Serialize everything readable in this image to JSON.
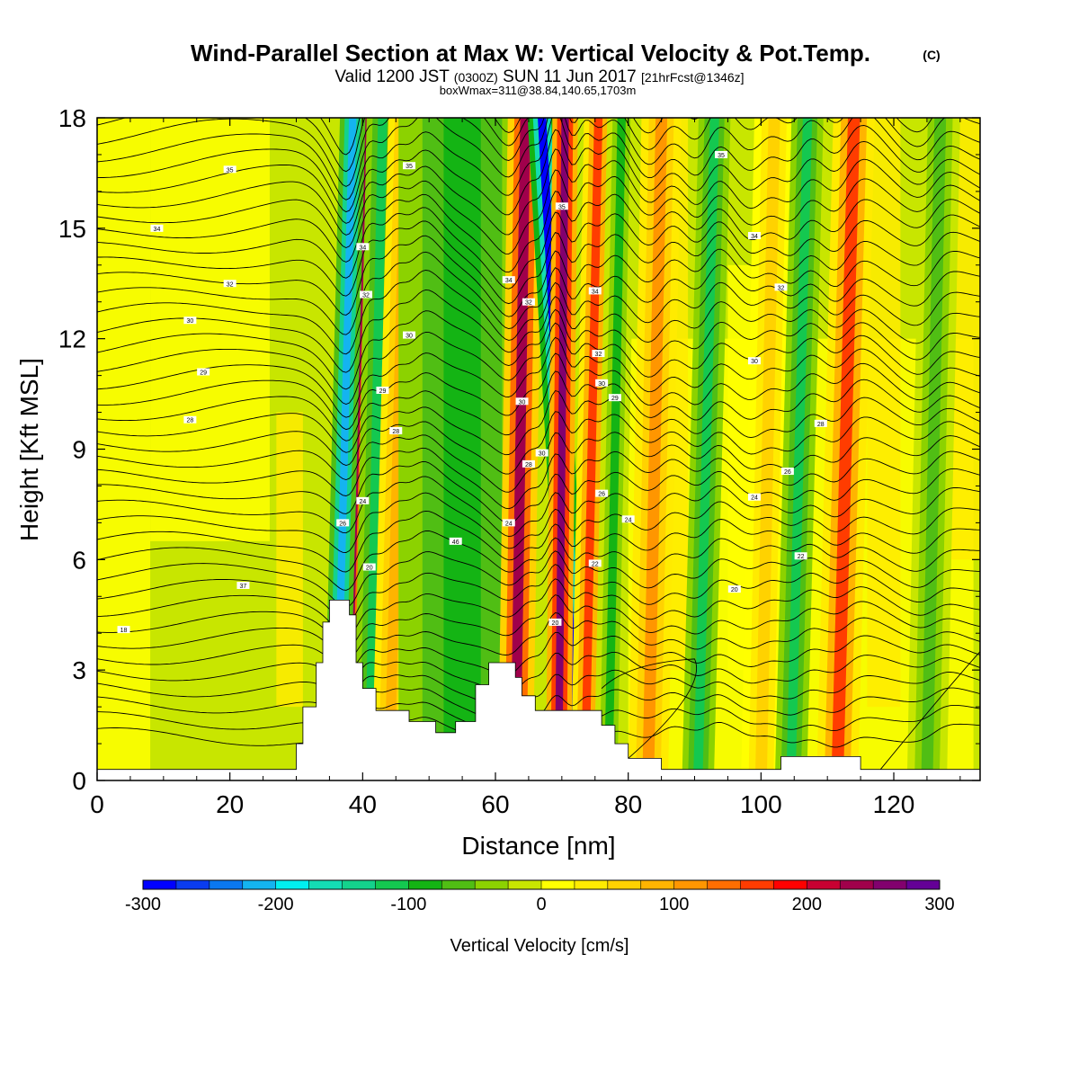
{
  "header": {
    "title": "Wind-Parallel Section at Max W: Vertical Velocity & Pot.Temp.",
    "copyright": "(C)",
    "valid_main": "Valid 1200 JST",
    "valid_utc": "(0300Z)",
    "valid_date": "SUN 11 Jun 2017",
    "forecast": "[21hrFcst@1346z]",
    "boxline": "boxWmax=311@38.84,140.65,1703m"
  },
  "chart_data": {
    "type": "heatmap",
    "xlabel": "Distance [nm]",
    "ylabel": "Height [Kft MSL]",
    "xlim": [
      0,
      133
    ],
    "ylim": [
      0,
      18
    ],
    "x_ticks": [
      0,
      20,
      40,
      60,
      80,
      100,
      120
    ],
    "y_ticks": [
      0,
      3,
      6,
      9,
      12,
      15,
      18
    ],
    "colorbar": {
      "label": "Vertical Velocity [cm/s]",
      "min": -300,
      "max": 300,
      "step": 25,
      "tick_values": [
        -300,
        -200,
        -100,
        0,
        100,
        200,
        300
      ],
      "tick_labels": [
        "-300",
        "-200",
        "-100",
        "0",
        "100",
        "200",
        "300"
      ],
      "colors": [
        "#0000ff",
        "#0a3cf0",
        "#0a78f0",
        "#14b4f0",
        "#00f0f0",
        "#14dcb4",
        "#14d28c",
        "#14c850",
        "#14b414",
        "#50be14",
        "#8cd200",
        "#c8e600",
        "#ffff00",
        "#ffeb00",
        "#ffd200",
        "#ffb400",
        "#ff9600",
        "#ff6e00",
        "#ff3c00",
        "#ff0000",
        "#c80032",
        "#a0004b",
        "#82006e",
        "#640096"
      ]
    },
    "vertical_velocity_bands": [
      {
        "x_top": 40,
        "x_bottom": 37.5,
        "w": 230,
        "width": 2.0
      },
      {
        "x_top": 38.5,
        "x_bottom": 36.0,
        "w": -210,
        "width": 1.6
      },
      {
        "x_top": 43,
        "x_bottom": 41,
        "w": -120,
        "width": 2.0
      },
      {
        "x_top": 46.5,
        "x_bottom": 44,
        "w": 90,
        "width": 2.2
      },
      {
        "x_top": 49.5,
        "x_bottom": 47.5,
        "w": 60,
        "width": 2.0
      },
      {
        "x_top": 55,
        "x_bottom": 55,
        "w": -100,
        "width": 8.0
      },
      {
        "x_top": 64.5,
        "x_bottom": 63,
        "w": 230,
        "width": 2.2
      },
      {
        "x_top": 67,
        "x_bottom": 72.5,
        "w": -280,
        "width": 1.8
      },
      {
        "x_top": 70.5,
        "x_bottom": 69.5,
        "w": 270,
        "width": 1.6
      },
      {
        "x_top": 75.5,
        "x_bottom": 73.5,
        "w": 150,
        "width": 1.8
      },
      {
        "x_top": 79,
        "x_bottom": 77,
        "w": -80,
        "width": 1.8
      },
      {
        "x_top": 85,
        "x_bottom": 83,
        "w": 110,
        "width": 2.5
      },
      {
        "x_top": 93,
        "x_bottom": 90.5,
        "w": -110,
        "width": 2.0
      },
      {
        "x_top": 102,
        "x_bottom": 100,
        "w": 60,
        "width": 2.5
      },
      {
        "x_top": 107,
        "x_bottom": 104.5,
        "w": -120,
        "width": 2.0
      },
      {
        "x_top": 114,
        "x_bottom": 111.5,
        "w": 160,
        "width": 2.6
      },
      {
        "x_top": 127,
        "x_bottom": 125,
        "w": -70,
        "width": 2.5
      }
    ],
    "terrain_height_kft": [
      [
        0,
        0.3
      ],
      [
        30,
        0.3
      ],
      [
        30,
        1.0
      ],
      [
        31,
        1.0
      ],
      [
        31,
        2.0
      ],
      [
        33,
        2.0
      ],
      [
        33,
        3.2
      ],
      [
        34,
        3.2
      ],
      [
        34,
        4.3
      ],
      [
        35,
        4.3
      ],
      [
        35,
        4.9
      ],
      [
        38,
        4.9
      ],
      [
        38,
        4.5
      ],
      [
        39,
        4.5
      ],
      [
        39,
        3.2
      ],
      [
        40,
        3.2
      ],
      [
        40,
        2.5
      ],
      [
        42,
        2.5
      ],
      [
        42,
        1.9
      ],
      [
        47,
        1.9
      ],
      [
        47,
        1.6
      ],
      [
        51,
        1.6
      ],
      [
        51,
        1.3
      ],
      [
        54,
        1.3
      ],
      [
        54,
        1.6
      ],
      [
        57,
        1.6
      ],
      [
        57,
        2.6
      ],
      [
        59,
        2.6
      ],
      [
        59,
        3.2
      ],
      [
        63,
        3.2
      ],
      [
        63,
        2.8
      ],
      [
        64,
        2.8
      ],
      [
        64,
        2.3
      ],
      [
        66,
        2.3
      ],
      [
        66,
        1.9
      ],
      [
        76,
        1.9
      ],
      [
        76,
        1.5
      ],
      [
        78,
        1.5
      ],
      [
        78,
        1.0
      ],
      [
        80,
        1.0
      ],
      [
        80,
        0.6
      ],
      [
        85,
        0.6
      ],
      [
        85,
        0.3
      ],
      [
        103,
        0.3
      ],
      [
        103,
        0.65
      ],
      [
        115,
        0.65
      ],
      [
        115,
        0.3
      ],
      [
        133,
        0.3
      ]
    ],
    "theta_labels": [
      {
        "x": 20,
        "y": 16.6,
        "text": "35"
      },
      {
        "x": 9,
        "y": 15.0,
        "text": "34"
      },
      {
        "x": 20,
        "y": 13.5,
        "text": "32"
      },
      {
        "x": 14,
        "y": 12.5,
        "text": "30"
      },
      {
        "x": 16,
        "y": 11.1,
        "text": "29"
      },
      {
        "x": 14,
        "y": 9.8,
        "text": "28"
      },
      {
        "x": 22,
        "y": 5.3,
        "text": "37"
      },
      {
        "x": 4,
        "y": 4.1,
        "text": "18"
      },
      {
        "x": 47,
        "y": 16.7,
        "text": "35"
      },
      {
        "x": 40,
        "y": 14.5,
        "text": "34"
      },
      {
        "x": 40.5,
        "y": 13.2,
        "text": "32"
      },
      {
        "x": 47,
        "y": 12.1,
        "text": "30"
      },
      {
        "x": 43,
        "y": 10.6,
        "text": "29"
      },
      {
        "x": 45,
        "y": 9.5,
        "text": "28"
      },
      {
        "x": 40,
        "y": 7.6,
        "text": "24"
      },
      {
        "x": 37,
        "y": 7.0,
        "text": "26"
      },
      {
        "x": 41,
        "y": 5.8,
        "text": "20"
      },
      {
        "x": 54,
        "y": 6.5,
        "text": "46"
      },
      {
        "x": 62,
        "y": 13.6,
        "text": "34"
      },
      {
        "x": 65,
        "y": 13.0,
        "text": "32"
      },
      {
        "x": 70,
        "y": 15.6,
        "text": "35"
      },
      {
        "x": 75,
        "y": 13.3,
        "text": "34"
      },
      {
        "x": 75.5,
        "y": 11.6,
        "text": "32"
      },
      {
        "x": 76,
        "y": 10.8,
        "text": "30"
      },
      {
        "x": 78,
        "y": 10.4,
        "text": "29"
      },
      {
        "x": 64,
        "y": 10.3,
        "text": "30"
      },
      {
        "x": 67,
        "y": 8.9,
        "text": "30"
      },
      {
        "x": 65,
        "y": 8.6,
        "text": "28"
      },
      {
        "x": 76,
        "y": 7.8,
        "text": "26"
      },
      {
        "x": 62,
        "y": 7.0,
        "text": "24"
      },
      {
        "x": 80,
        "y": 7.1,
        "text": "24"
      },
      {
        "x": 75,
        "y": 5.9,
        "text": "22"
      },
      {
        "x": 69,
        "y": 4.3,
        "text": "20"
      },
      {
        "x": 94,
        "y": 17.0,
        "text": "35"
      },
      {
        "x": 99,
        "y": 14.8,
        "text": "34"
      },
      {
        "x": 103,
        "y": 13.4,
        "text": "32"
      },
      {
        "x": 99,
        "y": 11.4,
        "text": "30"
      },
      {
        "x": 109,
        "y": 9.7,
        "text": "28"
      },
      {
        "x": 104,
        "y": 8.4,
        "text": "26"
      },
      {
        "x": 99,
        "y": 7.7,
        "text": "24"
      },
      {
        "x": 106,
        "y": 6.1,
        "text": "22"
      },
      {
        "x": 96,
        "y": 5.2,
        "text": "20"
      }
    ]
  }
}
